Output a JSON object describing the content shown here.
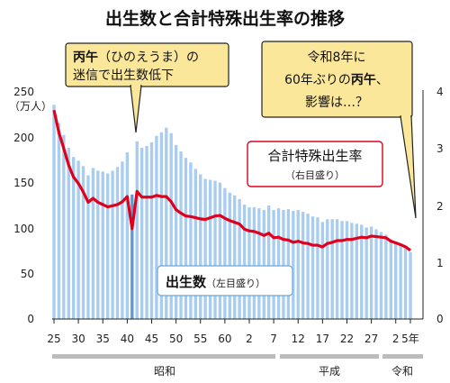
{
  "title": "出生数と合計特殊出生率の推移",
  "left_axis": {
    "unit": "（万人）",
    "ticks": [
      "250",
      "200",
      "150",
      "100",
      "50",
      "0"
    ]
  },
  "right_axis": {
    "ticks": [
      "4",
      "3",
      "2",
      "1",
      "0"
    ]
  },
  "x_axis": {
    "ticks": [
      "25",
      "30",
      "35",
      "40",
      "45",
      "50",
      "55",
      "60",
      "2",
      "7",
      "12",
      "17",
      "22",
      "27",
      "2",
      "5年"
    ]
  },
  "eras": [
    {
      "name": "昭和"
    },
    {
      "name": "平成"
    },
    {
      "name": "令和"
    }
  ],
  "callouts": {
    "hinoeuma": {
      "line1_bold": "丙午",
      "line1_rest": "（ひのえうま）の",
      "line2": "迷信で出生数低下"
    },
    "reiwa": {
      "line1": "令和8年に",
      "line2_pre": "60年ぶりの",
      "line2_bold": "丙午",
      "line2_post": "、",
      "line3": "影響は…？"
    }
  },
  "legend": {
    "rate_label": "合計特殊出生率",
    "rate_sub": "（右目盛り）",
    "births_label": "出生数",
    "births_sub": "（左目盛り）"
  },
  "colors": {
    "bars": "#a9cdee",
    "bar_highlight": "#5e9bd6",
    "rate_line": "#e0001b",
    "callout_bg": "#fbe79a"
  },
  "chart_data": {
    "type": "bar",
    "x": [
      "1950",
      "1951",
      "1952",
      "1953",
      "1954",
      "1955",
      "1956",
      "1957",
      "1958",
      "1959",
      "1960",
      "1961",
      "1962",
      "1963",
      "1964",
      "1965",
      "1966",
      "1967",
      "1968",
      "1969",
      "1970",
      "1971",
      "1972",
      "1973",
      "1974",
      "1975",
      "1976",
      "1977",
      "1978",
      "1979",
      "1980",
      "1981",
      "1982",
      "1983",
      "1984",
      "1985",
      "1986",
      "1987",
      "1988",
      "1989",
      "1990",
      "1991",
      "1992",
      "1993",
      "1994",
      "1995",
      "1996",
      "1997",
      "1998",
      "1999",
      "2000",
      "2001",
      "2002",
      "2003",
      "2004",
      "2005",
      "2006",
      "2007",
      "2008",
      "2009",
      "2010",
      "2011",
      "2012",
      "2013",
      "2014",
      "2015",
      "2016",
      "2017",
      "2018",
      "2019",
      "2020",
      "2021",
      "2022",
      "2023"
    ],
    "series": [
      {
        "name": "出生数",
        "axis": "left",
        "unit": "万人",
        "values": [
          234,
          214,
          201,
          187,
          177,
          173,
          167,
          157,
          165,
          162,
          161,
          159,
          162,
          166,
          172,
          182,
          136,
          194,
          187,
          189,
          193,
          200,
          204,
          209,
          203,
          190,
          183,
          176,
          171,
          164,
          158,
          153,
          152,
          151,
          149,
          143,
          138,
          135,
          131,
          125,
          122,
          122,
          121,
          119,
          124,
          119,
          121,
          119,
          120,
          118,
          119,
          117,
          115,
          112,
          111,
          106,
          109,
          109,
          109,
          107,
          107,
          105,
          104,
          103,
          100,
          101,
          98,
          95,
          92,
          87,
          84,
          81,
          77,
          73
        ]
      },
      {
        "name": "合計特殊出生率",
        "axis": "right",
        "values": [
          3.65,
          3.26,
          2.98,
          2.69,
          2.48,
          2.37,
          2.22,
          2.04,
          2.11,
          2.04,
          2.0,
          1.96,
          1.98,
          2.0,
          2.05,
          2.14,
          1.58,
          2.23,
          2.13,
          2.13,
          2.13,
          2.16,
          2.14,
          2.14,
          2.05,
          1.91,
          1.85,
          1.8,
          1.79,
          1.77,
          1.75,
          1.74,
          1.77,
          1.8,
          1.81,
          1.76,
          1.72,
          1.69,
          1.66,
          1.57,
          1.54,
          1.53,
          1.5,
          1.46,
          1.5,
          1.42,
          1.43,
          1.39,
          1.38,
          1.34,
          1.36,
          1.33,
          1.32,
          1.29,
          1.29,
          1.26,
          1.32,
          1.34,
          1.37,
          1.37,
          1.39,
          1.39,
          1.41,
          1.43,
          1.42,
          1.45,
          1.44,
          1.43,
          1.42,
          1.36,
          1.33,
          1.3,
          1.26,
          1.2
        ]
      }
    ],
    "ylim_left": [
      0,
      250
    ],
    "ylim_right": [
      0,
      4
    ],
    "highlight_x": "1966"
  }
}
